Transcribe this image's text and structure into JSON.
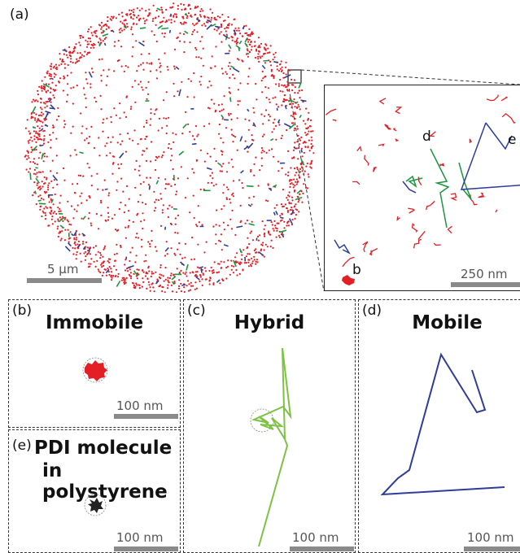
{
  "panel_a": {
    "label": "(a)",
    "scale_label": "5 µm",
    "inset": {
      "scale_label": "250 nm",
      "markers": [
        "d",
        "e",
        "b"
      ]
    }
  },
  "panel_b": {
    "label": "(b)",
    "title": "Immobile",
    "scale_label": "100 nm"
  },
  "panel_c": {
    "label": "(c)",
    "title": "Hybrid",
    "scale_label": "100 nm"
  },
  "panel_d": {
    "label": "(d)",
    "title": "Mobile",
    "scale_label": "100 nm"
  },
  "panel_e": {
    "label": "(e)",
    "title_line1": "PDI molecule",
    "title_line2": "in polystyrene",
    "scale_label": "100 nm"
  },
  "colors": {
    "immobile": "#e31e24",
    "hybrid_inset": "#1a9641",
    "hybrid": "#7dc242",
    "mobile": "#2e3d9a",
    "pdi": "#222222",
    "scale_bar": "#8a8a8a"
  }
}
